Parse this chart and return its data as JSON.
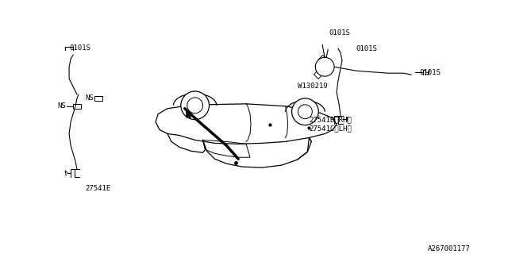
{
  "bg_color": "#ffffff",
  "line_color": "#000000",
  "thin_line_color": "#333333",
  "diagram_id": "A267001177",
  "labels": {
    "part_E": "27541E",
    "part_B_C": "27541B〈RH〉\n27541C〈LH〉",
    "part_W": "W130219",
    "ns1": "NS",
    "ns2": "NS",
    "s0101_left_bottom": "0101S",
    "s0101_right_top": "0101S",
    "s0101_right_mid": "0101S",
    "s0101_right_bottom": "0101S"
  },
  "font_size_label": 6.5,
  "font_size_diagram_id": 6.5
}
